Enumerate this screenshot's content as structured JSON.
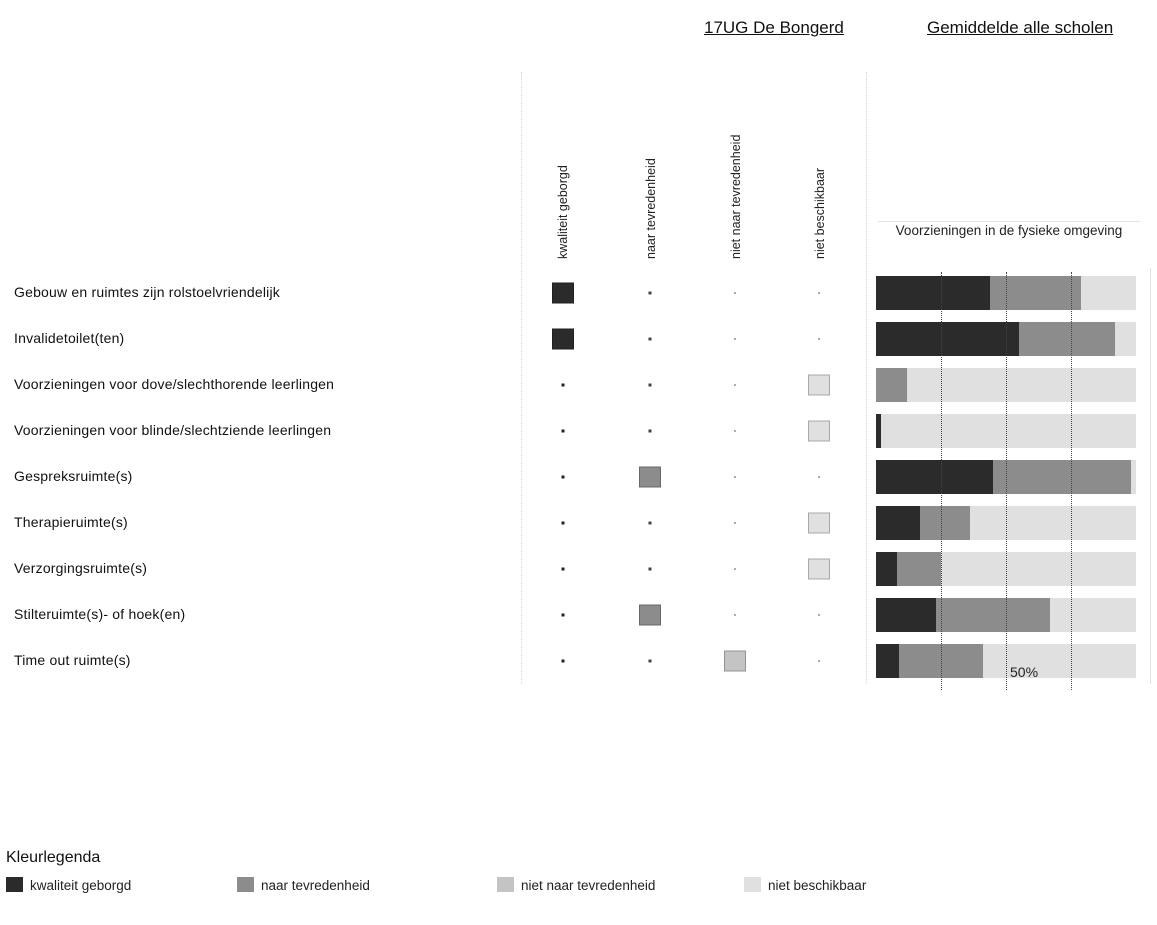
{
  "headers": {
    "school": "17UG De Bongerd",
    "average": "Gemiddelde alle scholen"
  },
  "columns": [
    {
      "key": "kwaliteit_geborgd",
      "label": "kwaliteit geborgd"
    },
    {
      "key": "naar_tevredenheid",
      "label": "naar tevredenheid"
    },
    {
      "key": "niet_naar_tevredenheid",
      "label": "niet naar tevredenheid"
    },
    {
      "key": "niet_beschikbaar",
      "label": "niet beschikbaar"
    }
  ],
  "colors": {
    "kwaliteit_geborgd": "#2b2b2b",
    "naar_tevredenheid": "#8c8c8c",
    "niet_naar_tevredenheid": "#c4c4c4",
    "niet_beschikbaar": "#e0e0e0"
  },
  "rows": [
    {
      "label": "Gebouw en ruimtes zijn rolstoelvriendelijk",
      "school": "kwaliteit_geborgd"
    },
    {
      "label": "Invalidetoilet(ten)",
      "school": "kwaliteit_geborgd"
    },
    {
      "label": "Voorzieningen voor dove/slechthorende leerlingen",
      "school": "niet_beschikbaar"
    },
    {
      "label": "Voorzieningen voor blinde/slechtziende leerlingen",
      "school": "niet_beschikbaar"
    },
    {
      "label": "Gespreksruimte(s)",
      "school": "naar_tevredenheid"
    },
    {
      "label": "Therapieruimte(s)",
      "school": "niet_beschikbaar"
    },
    {
      "label": "Verzorgingsruimte(s)",
      "school": "niet_beschikbaar"
    },
    {
      "label": "Stilteruimte(s)- of hoek(en)",
      "school": "naar_tevredenheid"
    },
    {
      "label": "Time out ruimte(s)",
      "school": "niet_naar_tevredenheid"
    }
  ],
  "chart_data": {
    "type": "bar",
    "stacked": true,
    "orientation": "horizontal",
    "title": "Voorzieningen in de fysieke omgeving",
    "xlim": [
      0,
      100
    ],
    "gridlines": [
      25,
      50,
      75
    ],
    "annotation": "50%",
    "categories": [
      "Gebouw en ruimtes zijn rolstoelvriendelijk",
      "Invalidetoilet(ten)",
      "Voorzieningen voor dove/slechthorende leerlingen",
      "Voorzieningen voor blinde/slechtziende leerlingen",
      "Gespreksruimte(s)",
      "Therapieruimte(s)",
      "Verzorgingsruimte(s)",
      "Stilteruimte(s)- of hoek(en)",
      "Time out ruimte(s)"
    ],
    "series": [
      {
        "name": "kwaliteit geborgd",
        "values": [
          44,
          55,
          0,
          2,
          45,
          17,
          8,
          23,
          9
        ]
      },
      {
        "name": "naar tevredenheid",
        "values": [
          35,
          37,
          12,
          0,
          53,
          19,
          17,
          44,
          32
        ]
      },
      {
        "name": "niet naar tevredenheid",
        "values": [
          0,
          0,
          0,
          0,
          0,
          0,
          0,
          0,
          0
        ]
      },
      {
        "name": "niet beschikbaar",
        "values": [
          21,
          8,
          88,
          98,
          2,
          64,
          75,
          33,
          59
        ]
      }
    ]
  },
  "legend": {
    "title": "Kleurlegenda",
    "items": [
      {
        "key": "kwaliteit_geborgd",
        "label": "kwaliteit geborgd"
      },
      {
        "key": "naar_tevredenheid",
        "label": "naar tevredenheid"
      },
      {
        "key": "niet_naar_tevredenheid",
        "label": "niet naar tevredenheid"
      },
      {
        "key": "niet_beschikbaar",
        "label": "niet beschikbaar"
      }
    ]
  }
}
